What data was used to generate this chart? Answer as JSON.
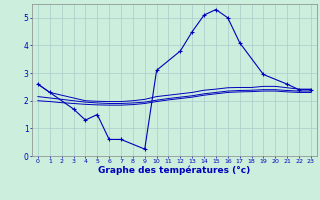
{
  "xlabel": "Graphe des températures (°c)",
  "background_color": "#cceedd",
  "line_color": "#0000bb",
  "hours": [
    0,
    1,
    2,
    3,
    4,
    5,
    6,
    7,
    8,
    9,
    10,
    11,
    12,
    13,
    14,
    15,
    16,
    17,
    18,
    19,
    20,
    21,
    22,
    23
  ],
  "main_curve_x": [
    0,
    1,
    3,
    4,
    5,
    6,
    7,
    9,
    10,
    12,
    13,
    14,
    15,
    16,
    17,
    19,
    21,
    22,
    23
  ],
  "main_curve_y": [
    2.6,
    2.3,
    1.7,
    1.3,
    1.5,
    0.6,
    0.6,
    0.25,
    3.1,
    3.8,
    4.5,
    5.1,
    5.3,
    5.0,
    4.1,
    2.95,
    2.6,
    2.4,
    2.4
  ],
  "line1_x": [
    0,
    1,
    2,
    3,
    4,
    5,
    6,
    7,
    8,
    9,
    10,
    11,
    12,
    13,
    14,
    15,
    16,
    17,
    18,
    19,
    20,
    21,
    22,
    23
  ],
  "line1_y": [
    2.6,
    2.3,
    2.2,
    2.1,
    2.0,
    1.98,
    1.97,
    1.97,
    2.0,
    2.05,
    2.15,
    2.2,
    2.25,
    2.3,
    2.38,
    2.42,
    2.47,
    2.48,
    2.48,
    2.52,
    2.52,
    2.47,
    2.42,
    2.42
  ],
  "line2_x": [
    0,
    1,
    2,
    3,
    4,
    5,
    6,
    7,
    8,
    9,
    10,
    11,
    12,
    13,
    14,
    15,
    16,
    17,
    18,
    19,
    20,
    21,
    22,
    23
  ],
  "line2_y": [
    2.15,
    2.1,
    2.05,
    2.0,
    1.95,
    1.92,
    1.9,
    1.9,
    1.92,
    1.95,
    2.02,
    2.08,
    2.13,
    2.18,
    2.25,
    2.3,
    2.35,
    2.37,
    2.38,
    2.4,
    2.4,
    2.37,
    2.35,
    2.35
  ],
  "line3_x": [
    0,
    1,
    2,
    3,
    4,
    5,
    6,
    7,
    8,
    9,
    10,
    11,
    12,
    13,
    14,
    15,
    16,
    17,
    18,
    19,
    20,
    21,
    22,
    23
  ],
  "line3_y": [
    2.0,
    1.97,
    1.93,
    1.9,
    1.87,
    1.85,
    1.84,
    1.84,
    1.86,
    1.9,
    1.97,
    2.03,
    2.08,
    2.13,
    2.2,
    2.25,
    2.3,
    2.32,
    2.33,
    2.35,
    2.35,
    2.32,
    2.3,
    2.3
  ],
  "ylim": [
    0,
    5.5
  ],
  "yticks": [
    0,
    1,
    2,
    3,
    4,
    5
  ],
  "xlim": [
    -0.5,
    23.5
  ],
  "grid_color": "#aacccc"
}
